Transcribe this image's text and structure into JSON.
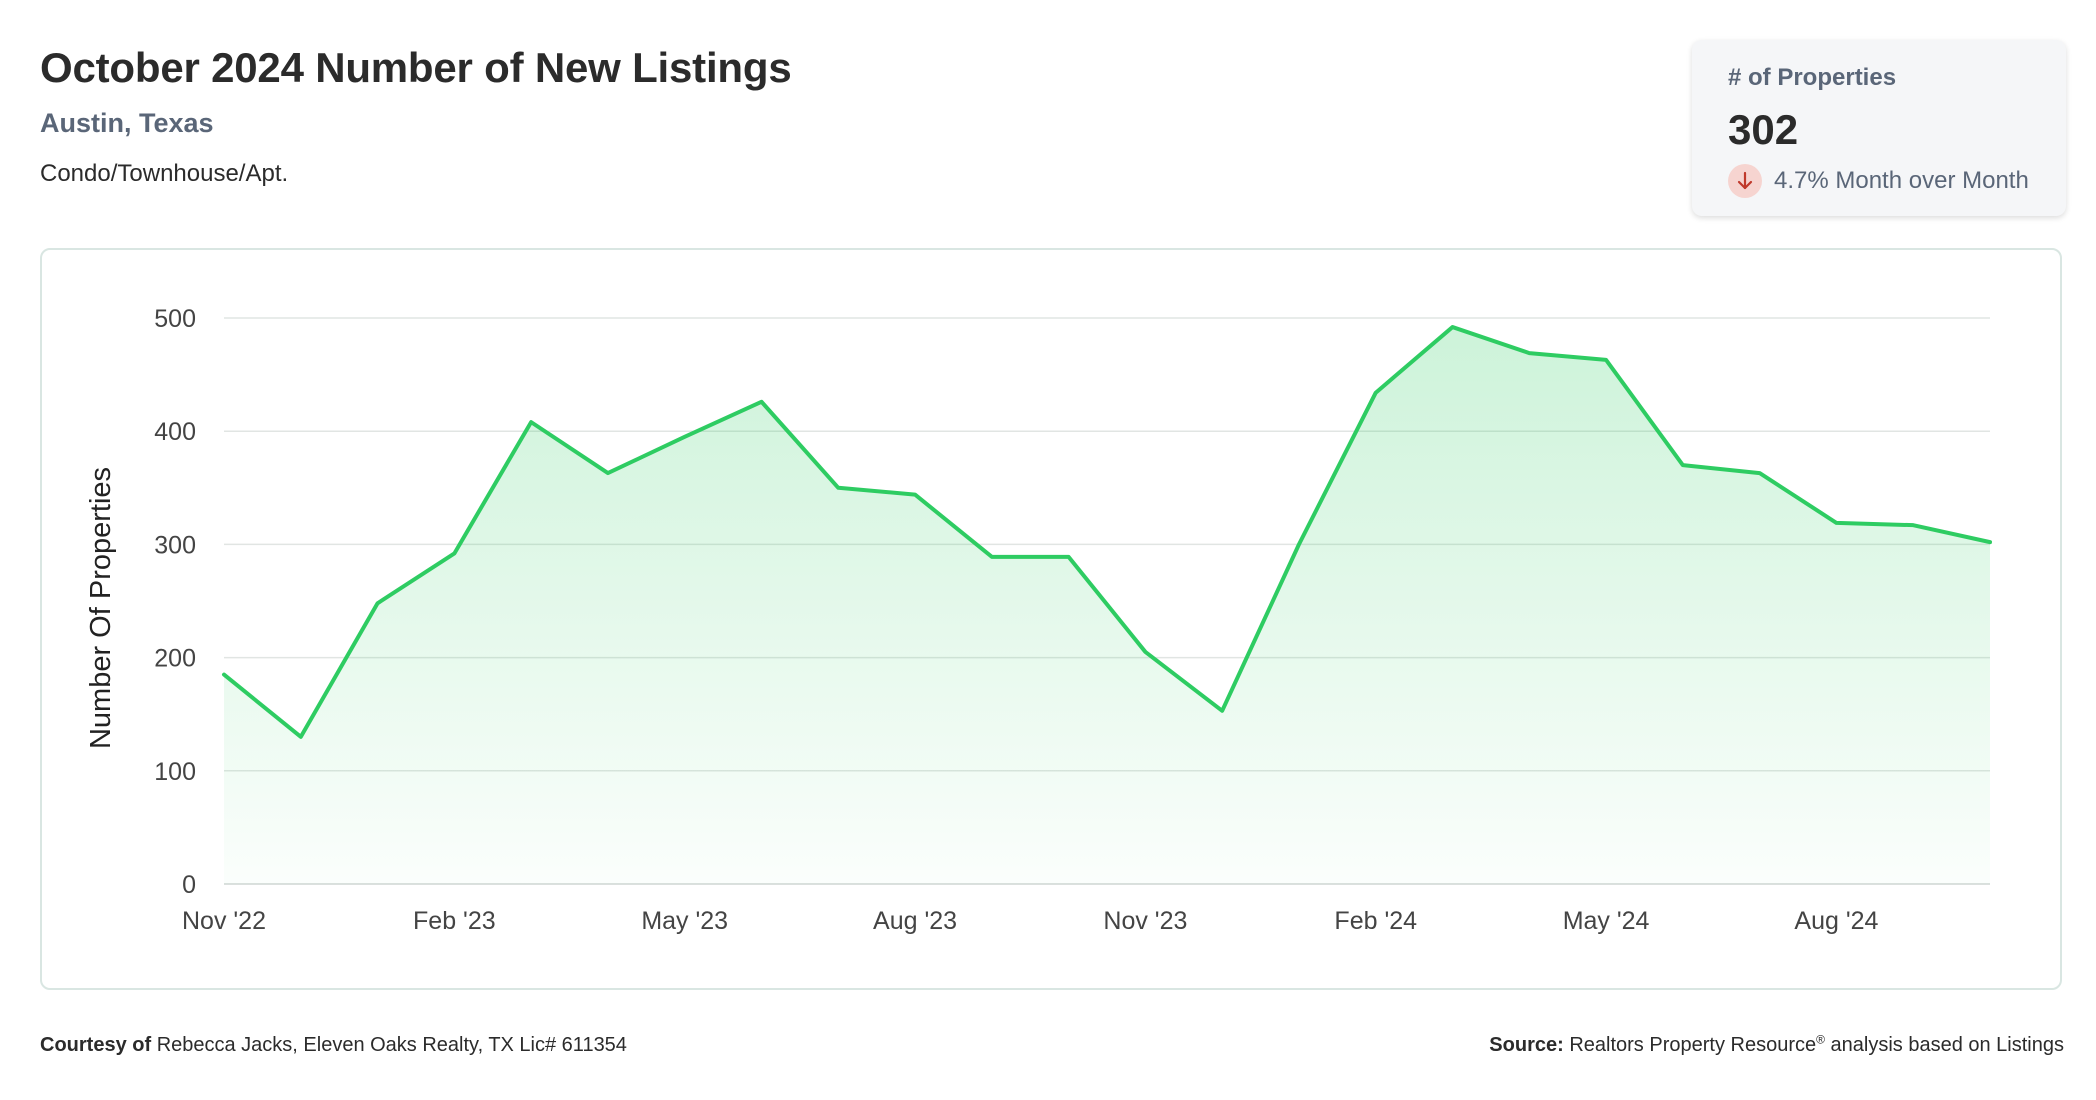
{
  "header": {
    "title": "October 2024 Number of New Listings",
    "location": "Austin, Texas",
    "property_type": "Condo/Townhouse/Apt."
  },
  "kpi": {
    "label": "# of Properties",
    "value": "302",
    "change_text": "4.7% Month over Month",
    "change_direction": "down",
    "change_icon": "arrow-down-icon",
    "change_icon_bg": "#f6d4d0",
    "change_icon_color": "#c0392b"
  },
  "chart_data": {
    "type": "area",
    "x": [
      "2022-11",
      "2022-12",
      "2023-01",
      "2023-02",
      "2023-03",
      "2023-04",
      "2023-05",
      "2023-06",
      "2023-07",
      "2023-08",
      "2023-09",
      "2023-10",
      "2023-11",
      "2023-12",
      "2024-01",
      "2024-02",
      "2024-03",
      "2024-04",
      "2024-05",
      "2024-06",
      "2024-07",
      "2024-08",
      "2024-09",
      "2024-10"
    ],
    "series": [
      {
        "values": [
          185,
          130,
          248,
          292,
          408,
          363,
          395,
          426,
          350,
          344,
          289,
          289,
          205,
          153,
          300,
          434,
          492,
          469,
          463,
          370,
          363,
          319,
          317,
          302
        ],
        "color": "#2ecc62"
      }
    ],
    "x_tick_labels": [
      "Nov '22",
      "Feb '23",
      "May '23",
      "Aug '23",
      "Nov '23",
      "Feb '24",
      "May '24",
      "Aug '24"
    ],
    "x_tick_index": [
      0,
      3,
      6,
      9,
      12,
      15,
      18,
      21
    ],
    "y_ticks": [
      0,
      100,
      200,
      300,
      400,
      500
    ],
    "ylim": [
      0,
      500
    ],
    "ylabel": "Number Of Properties",
    "xlabel": "",
    "grid": true,
    "legend": "none"
  },
  "footer": {
    "courtesy_label": "Courtesy of",
    "courtesy_text": "Rebecca Jacks, Eleven Oaks Realty, TX Lic# 611354",
    "source_label": "Source:",
    "source_name": "Realtors Property Resource",
    "source_mark": "®",
    "source_text": "analysis based on Listings"
  }
}
